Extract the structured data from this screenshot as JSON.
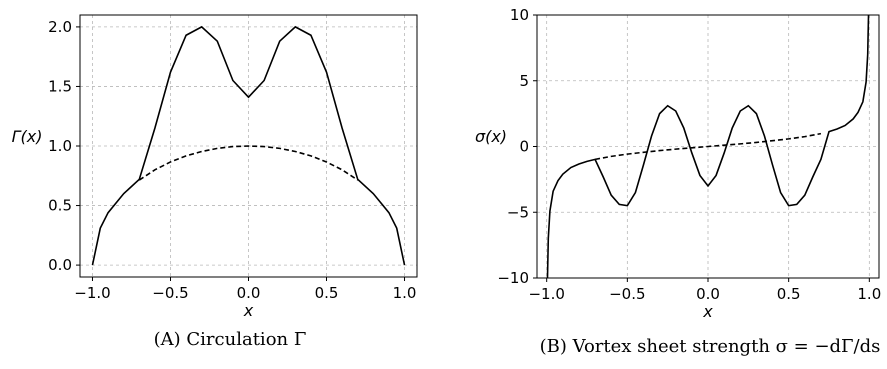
{
  "chart_data": [
    {
      "type": "line",
      "caption": "(A) Circulation Γ",
      "xlabel": "x",
      "ylabel": "Γ(x)",
      "xlim": [
        -1.08,
        1.08
      ],
      "ylim": [
        -0.1,
        2.1
      ],
      "xticks": [
        -1.0,
        -0.5,
        0.0,
        0.5,
        1.0
      ],
      "xtick_labels": [
        "−1.0",
        "−0.5",
        "0.0",
        "0.5",
        "1.0"
      ],
      "yticks": [
        0.0,
        0.5,
        1.0,
        1.5,
        2.0
      ],
      "ytick_labels": [
        "0.0",
        "0.5",
        "1.0",
        "1.5",
        "2.0"
      ],
      "grid": true,
      "series": [
        {
          "style": "solid",
          "x": [
            -1.0,
            -0.95,
            -0.9,
            -0.8,
            -0.7,
            -0.6,
            -0.5,
            -0.4,
            -0.3,
            -0.2,
            -0.1,
            0.0,
            0.1,
            0.2,
            0.3,
            0.4,
            0.5,
            0.6,
            0.7,
            0.8,
            0.9,
            0.95,
            1.0
          ],
          "y": [
            0.0,
            0.31,
            0.44,
            0.6,
            0.72,
            1.15,
            1.62,
            1.93,
            2.0,
            1.88,
            1.55,
            1.41,
            1.55,
            1.88,
            2.0,
            1.93,
            1.62,
            1.15,
            0.72,
            0.6,
            0.44,
            0.31,
            0.0
          ]
        },
        {
          "style": "dashed",
          "x": [
            -0.7,
            -0.6,
            -0.5,
            -0.4,
            -0.3,
            -0.2,
            -0.1,
            0.0,
            0.1,
            0.2,
            0.3,
            0.4,
            0.5,
            0.6,
            0.7
          ],
          "y": [
            0.714,
            0.8,
            0.866,
            0.917,
            0.954,
            0.98,
            0.995,
            1.0,
            0.995,
            0.98,
            0.954,
            0.917,
            0.866,
            0.8,
            0.714
          ]
        }
      ]
    },
    {
      "type": "line",
      "caption": "(B) Vortex sheet strength σ = −dΓ/ds",
      "xlabel": "x",
      "ylabel": "σ(x)",
      "xlim": [
        -1.06,
        1.06
      ],
      "ylim": [
        -10,
        10
      ],
      "xticks": [
        -1.0,
        -0.5,
        0.0,
        0.5,
        1.0
      ],
      "xtick_labels": [
        "−1.0",
        "−0.5",
        "0.0",
        "0.5",
        "1.0"
      ],
      "yticks": [
        -10,
        -5,
        0,
        5,
        10
      ],
      "ytick_labels": [
        "−10",
        "−5",
        "0",
        "5",
        "10"
      ],
      "grid": true,
      "series": [
        {
          "style": "solid",
          "x": [
            -0.995,
            -0.99,
            -0.98,
            -0.96,
            -0.93,
            -0.9,
            -0.85,
            -0.8,
            -0.75,
            -0.7,
            -0.65,
            -0.6,
            -0.55,
            -0.5,
            -0.45,
            -0.4,
            -0.35,
            -0.3,
            -0.25,
            -0.2,
            -0.15,
            -0.1,
            -0.05,
            0.0,
            0.05,
            0.1,
            0.15,
            0.2,
            0.25,
            0.3,
            0.35,
            0.4,
            0.45,
            0.5,
            0.55,
            0.6,
            0.65,
            0.7,
            0.75,
            0.8,
            0.85,
            0.9,
            0.93,
            0.96,
            0.98,
            0.99,
            0.995
          ],
          "y": [
            -10.0,
            -7.0,
            -4.9,
            -3.4,
            -2.6,
            -2.1,
            -1.6,
            -1.33,
            -1.13,
            -0.98,
            -2.3,
            -3.7,
            -4.4,
            -4.5,
            -3.5,
            -1.4,
            0.8,
            2.5,
            3.1,
            2.7,
            1.4,
            -0.5,
            -2.2,
            -3.0,
            -2.2,
            -0.5,
            1.4,
            2.7,
            3.1,
            2.5,
            0.8,
            -1.4,
            -3.5,
            -4.5,
            -4.4,
            -3.7,
            -2.3,
            -0.98,
            1.13,
            1.33,
            1.6,
            2.1,
            2.6,
            3.4,
            4.9,
            7.0,
            10.0
          ]
        },
        {
          "style": "dashed",
          "x": [
            -0.7,
            -0.6,
            -0.5,
            -0.4,
            -0.3,
            -0.2,
            -0.1,
            0.0,
            0.1,
            0.2,
            0.3,
            0.4,
            0.5,
            0.6,
            0.7
          ],
          "y": [
            -0.98,
            -0.75,
            -0.58,
            -0.44,
            -0.31,
            -0.2,
            -0.1,
            0.0,
            0.1,
            0.2,
            0.31,
            0.44,
            0.58,
            0.75,
            0.98
          ]
        }
      ]
    }
  ]
}
